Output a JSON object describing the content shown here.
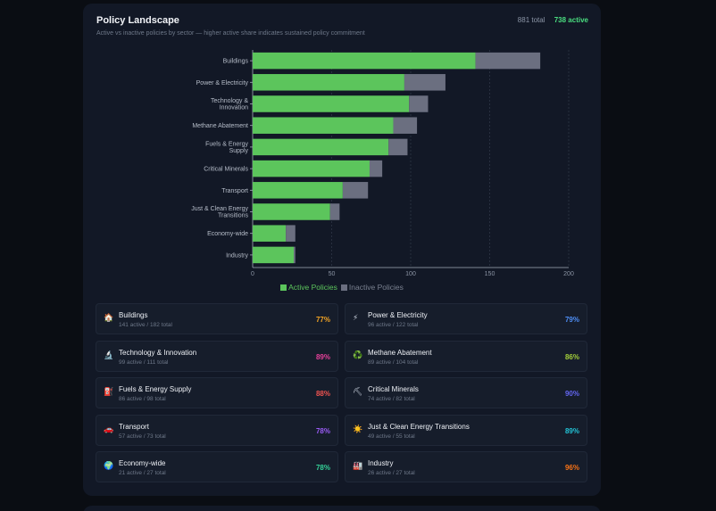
{
  "header": {
    "title": "Policy Landscape",
    "subtitle": "Active vs inactive policies by sector — higher active share indicates sustained policy commitment",
    "total_label": "881 total",
    "active_label": "738 active"
  },
  "colors": {
    "active": "#5cc55c",
    "inactive": "#6b6f80",
    "grid": "#2e3646",
    "axis_text": "#8a93a3"
  },
  "chart_data": {
    "type": "bar",
    "orientation": "horizontal",
    "stacked": true,
    "categories": [
      "Buildings",
      "Power & Electricity",
      "Technology & Innovation",
      "Methane Abatement",
      "Fuels & Energy Supply",
      "Critical Minerals",
      "Transport",
      "Just & Clean Energy Transitions",
      "Economy-wide",
      "Industry"
    ],
    "series": [
      {
        "name": "Active Policies",
        "values": [
          141,
          96,
          99,
          89,
          86,
          74,
          57,
          49,
          21,
          26
        ]
      },
      {
        "name": "Inactive Policies",
        "values": [
          41,
          26,
          12,
          15,
          12,
          8,
          16,
          6,
          6,
          1
        ]
      }
    ],
    "xlim": [
      0,
      200
    ],
    "xticks": [
      "0",
      "50",
      "100",
      "150",
      "200"
    ],
    "grid": true,
    "legend": "bottom"
  },
  "tiles": [
    {
      "icon": "🏠",
      "icon_name": "house-icon",
      "name": "Buildings",
      "stats": "141 active / 182 total",
      "pct": "77%",
      "color": "#f5a524"
    },
    {
      "icon": "⚡",
      "icon_name": "lightning-icon",
      "name": "Power & Electricity",
      "stats": "96 active / 122 total",
      "pct": "79%",
      "color": "#4f8ff7"
    },
    {
      "icon": "🔬",
      "icon_name": "microscope-icon",
      "name": "Technology & Innovation",
      "stats": "99 active / 111 total",
      "pct": "89%",
      "color": "#e6409a"
    },
    {
      "icon": "♻️",
      "icon_name": "recycle-icon",
      "name": "Methane Abatement",
      "stats": "89 active / 104 total",
      "pct": "86%",
      "color": "#a3cf3a"
    },
    {
      "icon": "⛽",
      "icon_name": "fuel-pump-icon",
      "name": "Fuels & Energy Supply",
      "stats": "86 active / 98 total",
      "pct": "88%",
      "color": "#ef5350"
    },
    {
      "icon": "⛏",
      "icon_name": "pickaxe-icon",
      "name": "Critical Minerals",
      "stats": "74 active / 82 total",
      "pct": "90%",
      "color": "#6366f1"
    },
    {
      "icon": "🚗",
      "icon_name": "car-icon",
      "name": "Transport",
      "stats": "57 active / 73 total",
      "pct": "78%",
      "color": "#9b5cf6"
    },
    {
      "icon": "☀️",
      "icon_name": "sun-icon",
      "name": "Just & Clean Energy Transitions",
      "stats": "49 active / 55 total",
      "pct": "89%",
      "color": "#22c3d6"
    },
    {
      "icon": "🌍",
      "icon_name": "globe-icon",
      "name": "Economy-wide",
      "stats": "21 active / 27 total",
      "pct": "78%",
      "color": "#34d399"
    },
    {
      "icon": "🏭",
      "icon_name": "factory-icon",
      "name": "Industry",
      "stats": "26 active / 27 total",
      "pct": "96%",
      "color": "#f97316"
    }
  ]
}
